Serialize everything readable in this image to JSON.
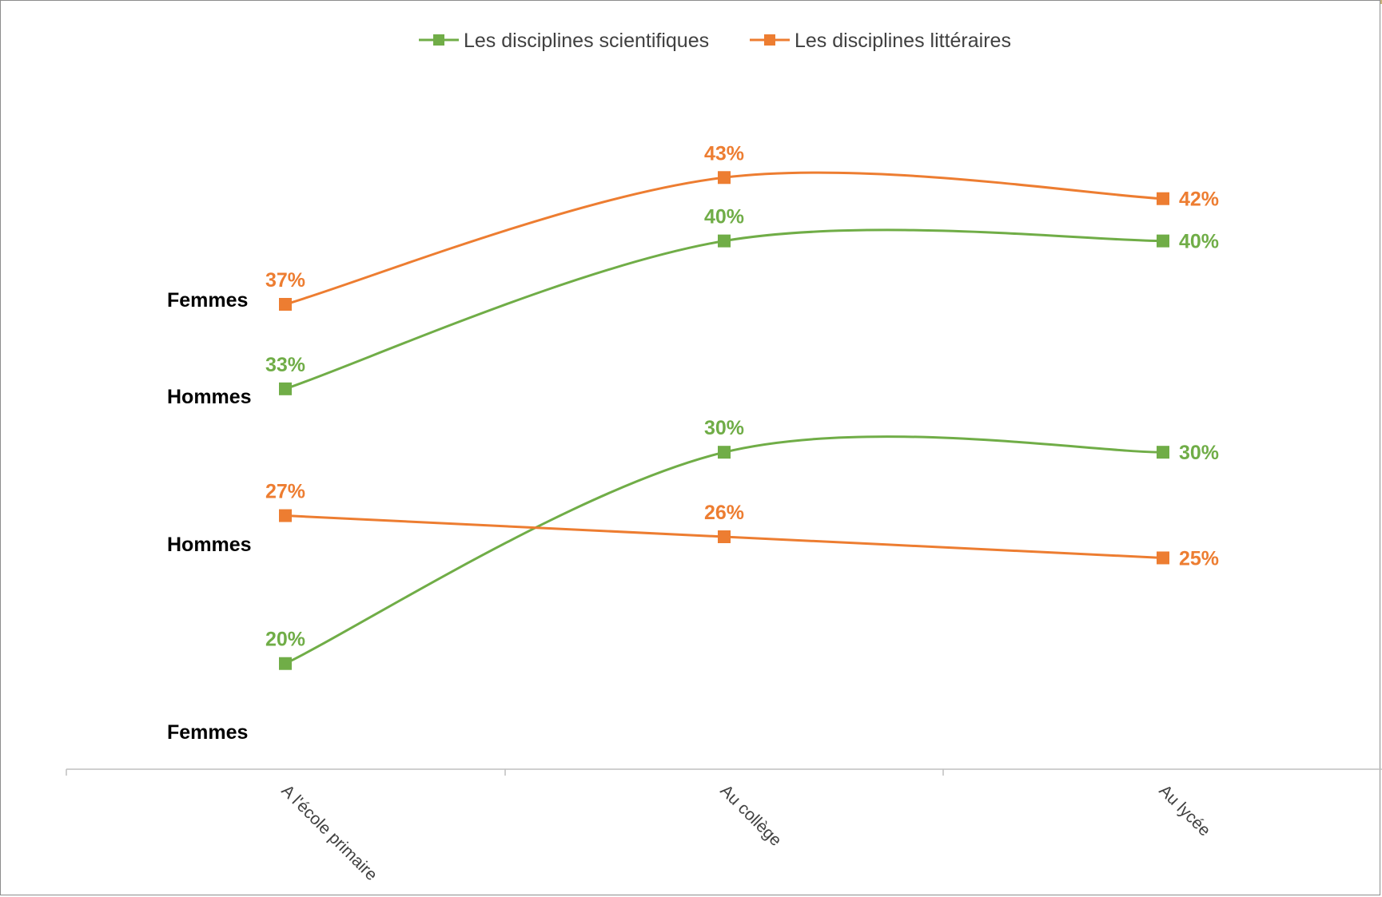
{
  "colors": {
    "scientifiques": "#70ad47",
    "litteraires": "#ed7d31",
    "axis": "#bfbfbf",
    "frame_accent": "#c8b27a"
  },
  "legend": {
    "scientifiques": "Les disciplines scientifiques",
    "litteraires": "Les disciplines littéraires"
  },
  "chart_data": {
    "type": "line",
    "smooth": true,
    "categories": [
      "A l'école primaire",
      "Au collège",
      "Au lycée"
    ],
    "ylim": [
      15,
      48
    ],
    "grid": false,
    "legend_position": "top-center",
    "series": [
      {
        "name": "Les disciplines littéraires",
        "color_key": "litteraires",
        "group": "Femmes",
        "values": [
          37,
          43,
          42
        ],
        "labels": [
          "37%",
          "43%",
          "42%"
        ]
      },
      {
        "name": "Les disciplines scientifiques",
        "color_key": "scientifiques",
        "group": "Hommes",
        "values": [
          33,
          40,
          40
        ],
        "labels": [
          "33%",
          "40%",
          "40%"
        ]
      },
      {
        "name": "Les disciplines scientifiques",
        "color_key": "scientifiques",
        "group": "Femmes",
        "values": [
          20,
          30,
          30
        ],
        "labels": [
          "20%",
          "30%",
          "30%"
        ]
      },
      {
        "name": "Les disciplines littéraires",
        "color_key": "litteraires",
        "group": "Hommes",
        "values": [
          27,
          26,
          25
        ],
        "labels": [
          "27%",
          "26%",
          "25%"
        ]
      }
    ]
  },
  "group_labels": [
    "Femmes",
    "Hommes",
    "Hommes",
    "Femmes"
  ]
}
